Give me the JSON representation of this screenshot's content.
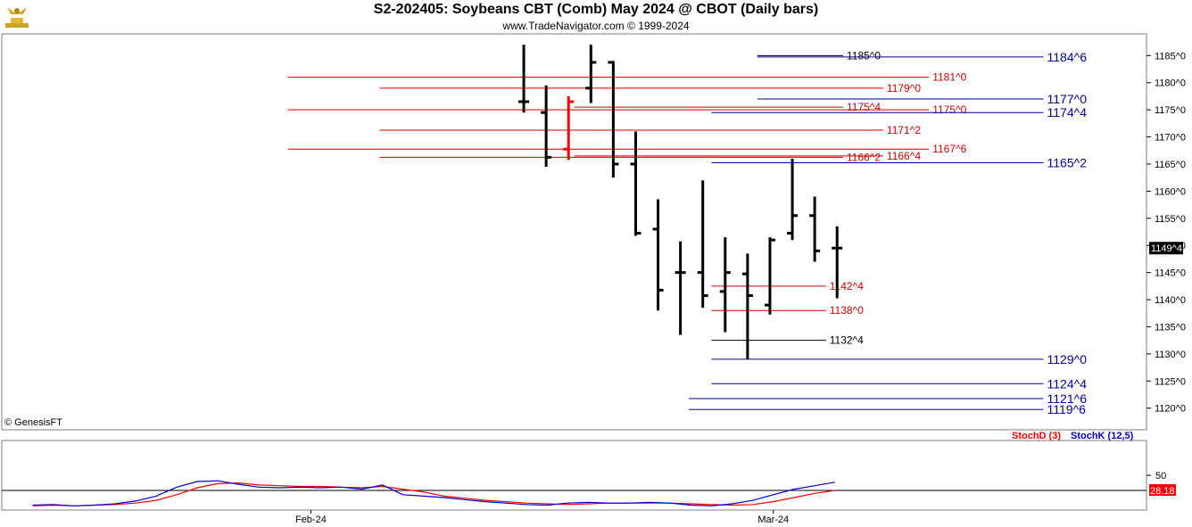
{
  "header": {
    "title": "S2-202405:  Soybeans CBT (Comb) May 2024 @ CBOT  (Daily bars)",
    "subtitle": "www.TradeNavigator.com © 1999-2024",
    "copyright": "© GenesisFT",
    "logo_icon": "bull-trophy-icon"
  },
  "colors": {
    "bar": "#000000",
    "red_bar": "#ff0000",
    "red_level": "#cc0000",
    "blue_level": "#000099",
    "black_level": "#000000",
    "stoch_d": "#ff0000",
    "stoch_k": "#0000cc",
    "last_price_bg": "#000000"
  },
  "chart_data": [
    {
      "type": "bar",
      "title": "S2-202405:  Soybeans CBT (Comb) May 2024 @ CBOT  (Daily bars)",
      "y_axis": {
        "range": [
          1116,
          1189
        ],
        "ticks": [
          "1185^0",
          "1180^0",
          "1175^0",
          "1170^0",
          "1165^0",
          "1160^0",
          "1155^0",
          "1150^0",
          "1145^0",
          "1140^0",
          "1135^0",
          "1130^0",
          "1125^0",
          "1120^0"
        ],
        "tick_values": [
          1185,
          1180,
          1175,
          1170,
          1165,
          1160,
          1155,
          1150,
          1145,
          1140,
          1135,
          1130,
          1125,
          1120
        ]
      },
      "last_price": {
        "label": "1149^4",
        "value": 1149.5
      },
      "x_axis": {
        "labels": [
          "Feb-24",
          "Mar-24"
        ]
      },
      "bars": [
        {
          "o": 1176.5,
          "h": 1187,
          "l": 1174.5,
          "c": 1176.5,
          "color": "black"
        },
        {
          "o": 1174.5,
          "h": 1179.5,
          "l": 1164.5,
          "c": 1166.25,
          "color": "black"
        },
        {
          "o": 1167.75,
          "h": 1177.5,
          "l": 1165.75,
          "c": 1176.5,
          "color": "red"
        },
        {
          "o": 1179,
          "h": 1187,
          "l": 1176.25,
          "c": 1183.75,
          "color": "black"
        },
        {
          "o": 1183.75,
          "h": 1184,
          "l": 1162.5,
          "c": 1165,
          "color": "black"
        },
        {
          "o": 1165,
          "h": 1171,
          "l": 1151.75,
          "c": 1152.25,
          "color": "black"
        },
        {
          "o": 1153,
          "h": 1158.5,
          "l": 1138,
          "c": 1141.75,
          "color": "black"
        },
        {
          "o": 1145,
          "h": 1150.75,
          "l": 1133.5,
          "c": 1145,
          "color": "black"
        },
        {
          "o": 1145,
          "h": 1162,
          "l": 1138.5,
          "c": 1140.75,
          "color": "black"
        },
        {
          "o": 1141.5,
          "h": 1151.5,
          "l": 1134,
          "c": 1145
        },
        {
          "o": 1144.75,
          "h": 1148.5,
          "l": 1129,
          "c": 1140.75,
          "color": "black"
        },
        {
          "o": 1139,
          "h": 1151.5,
          "l": 1137.25,
          "c": 1151,
          "color": "black"
        },
        {
          "o": 1152.25,
          "h": 1166,
          "l": 1151,
          "c": 1155.5,
          "color": "black"
        },
        {
          "o": 1155.5,
          "h": 1159,
          "l": 1147,
          "c": 1149,
          "color": "black"
        },
        {
          "o": 1149.5,
          "h": 1153.5,
          "l": 1140.25,
          "c": 1149.5,
          "color": "black"
        }
      ],
      "levels": [
        {
          "label": "1185^0",
          "value": 1185,
          "color": "black",
          "x0": 0.66,
          "x1": 0.735
        },
        {
          "label": "1184^6",
          "value": 1184.75,
          "color": "blue",
          "x0": 0.66,
          "x1": 0.91
        },
        {
          "label": "1181^0",
          "value": 1181,
          "color": "red",
          "x0": 0.25,
          "x1": 0.81
        },
        {
          "label": "1179^0",
          "value": 1179,
          "color": "red",
          "x0": 0.33,
          "x1": 0.77
        },
        {
          "label": "1177^0",
          "value": 1177,
          "color": "blue",
          "x0": 0.66,
          "x1": 0.91
        },
        {
          "label": "1175^4",
          "value": 1175.5,
          "color": "red",
          "x0": 0.5,
          "x1": 0.735
        },
        {
          "label": "1175^0",
          "value": 1175,
          "color": "red",
          "x0": 0.25,
          "x1": 0.81
        },
        {
          "label": "1174^4",
          "value": 1174.5,
          "color": "blue",
          "x0": 0.62,
          "x1": 0.91
        },
        {
          "label": "1171^2",
          "value": 1171.25,
          "color": "red",
          "x0": 0.33,
          "x1": 0.77
        },
        {
          "label": "1167^6",
          "value": 1167.75,
          "color": "red",
          "x0": 0.25,
          "x1": 0.81
        },
        {
          "label": "1166^2",
          "value": 1166.25,
          "color": "red",
          "x0": 0.33,
          "x1": 0.735
        },
        {
          "label": "1166^4",
          "value": 1166.5,
          "color": "red",
          "x0": 0.5,
          "x1": 0.77
        },
        {
          "label": "1165^2",
          "value": 1165.25,
          "color": "blue",
          "x0": 0.62,
          "x1": 0.91
        },
        {
          "label": "1142^4",
          "value": 1142.5,
          "color": "red",
          "x0": 0.62,
          "x1": 0.72
        },
        {
          "label": "1138^0",
          "value": 1138,
          "color": "red",
          "x0": 0.62,
          "x1": 0.72
        },
        {
          "label": "1132^4",
          "value": 1132.5,
          "color": "black",
          "x0": 0.62,
          "x1": 0.72
        },
        {
          "label": "1129^0",
          "value": 1129,
          "color": "blue",
          "x0": 0.62,
          "x1": 0.91
        },
        {
          "label": "1124^4",
          "value": 1124.5,
          "color": "blue",
          "x0": 0.62,
          "x1": 0.91
        },
        {
          "label": "1121^6",
          "value": 1121.75,
          "color": "blue",
          "x0": 0.6,
          "x1": 0.91
        },
        {
          "label": "1119^6",
          "value": 1119.75,
          "color": "blue",
          "x0": 0.6,
          "x1": 0.91
        }
      ]
    },
    {
      "type": "line",
      "title": "",
      "legend": [
        "StochD (3)",
        "StochK (12,5)"
      ],
      "y_axis": {
        "range": [
          0,
          100
        ],
        "ticks": [
          "50"
        ],
        "tick_values": [
          50
        ]
      },
      "last_value": {
        "label": "28.18",
        "value": 28.18
      },
      "series": [
        {
          "name": "StochD (3)",
          "color": "red",
          "values": [
            6,
            7,
            6,
            7,
            8,
            10,
            14,
            22,
            32,
            38,
            39,
            36,
            35,
            34,
            34,
            33,
            32,
            34,
            30,
            26,
            20,
            17,
            14,
            12,
            10,
            9,
            8,
            9,
            10,
            10,
            10,
            10,
            9,
            8,
            7,
            8,
            12,
            18,
            24,
            28.18
          ]
        },
        {
          "name": "StochK (12,5)",
          "color": "blue",
          "values": [
            7,
            8,
            6,
            7,
            9,
            13,
            20,
            33,
            41,
            42,
            37,
            33,
            32,
            33,
            32,
            33,
            30,
            36,
            22,
            20,
            18,
            15,
            12,
            10,
            8,
            7,
            10,
            11,
            10,
            10,
            11,
            10,
            7,
            6,
            9,
            14,
            22,
            30,
            35,
            40
          ]
        }
      ]
    }
  ]
}
